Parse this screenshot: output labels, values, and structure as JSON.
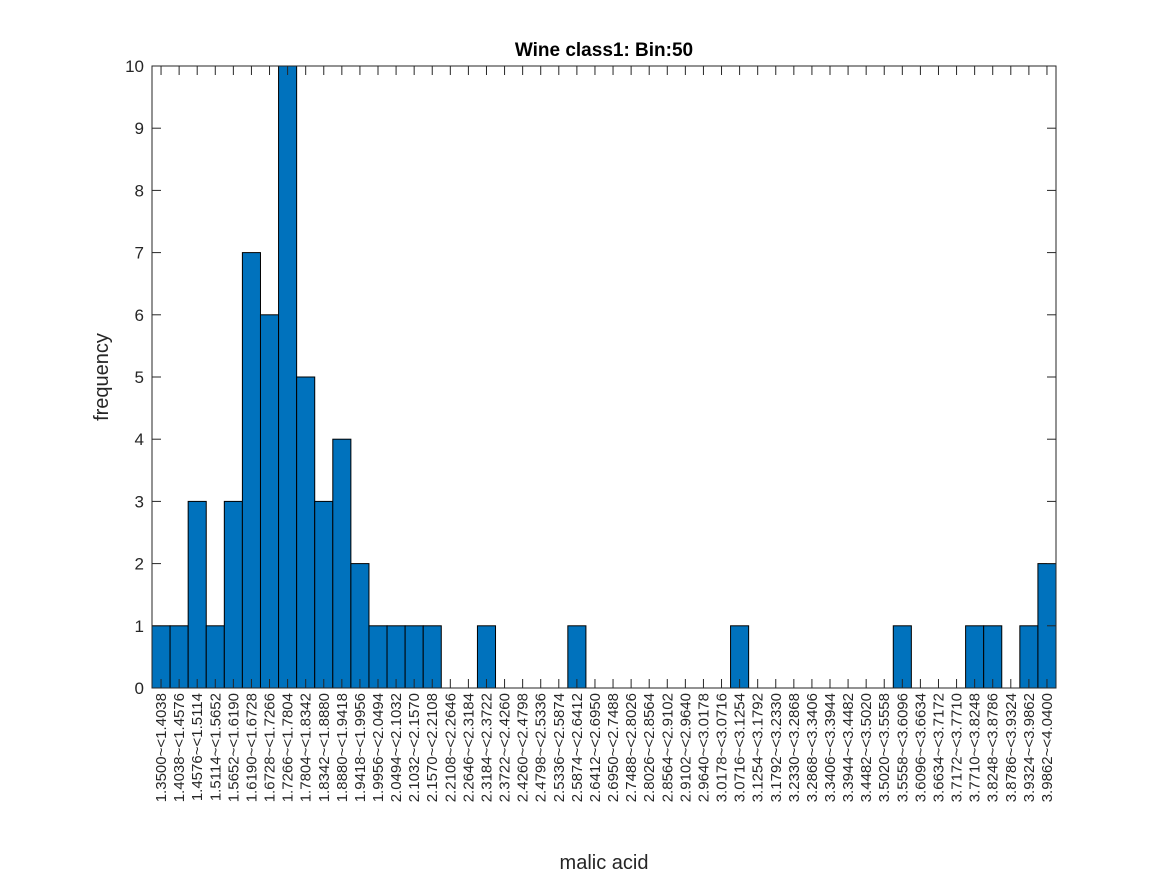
{
  "chart_data": {
    "type": "bar",
    "title": "Wine class1: Bin:50",
    "xlabel": "malic acid",
    "ylabel": "frequency",
    "ylim": [
      0,
      10
    ],
    "yticks": [
      "0",
      "1",
      "2",
      "3",
      "4",
      "5",
      "6",
      "7",
      "8",
      "9",
      "10"
    ],
    "grid": false,
    "bar_color": "#0072BD",
    "edge_color": "#000000",
    "categories": [
      "1.3500~<1.4038",
      "1.4038~<1.4576",
      "1.4576~<1.5114",
      "1.5114~<1.5652",
      "1.5652~<1.6190",
      "1.6190~<1.6728",
      "1.6728~<1.7266",
      "1.7266~<1.7804",
      "1.7804~<1.8342",
      "1.8342~<1.8880",
      "1.8880~<1.9418",
      "1.9418~<1.9956",
      "1.9956~<2.0494",
      "2.0494~<2.1032",
      "2.1032~<2.1570",
      "2.1570~<2.2108",
      "2.2108~<2.2646",
      "2.2646~<2.3184",
      "2.3184~<2.3722",
      "2.3722~<2.4260",
      "2.4260~<2.4798",
      "2.4798~<2.5336",
      "2.5336~<2.5874",
      "2.5874~<2.6412",
      "2.6412~<2.6950",
      "2.6950~<2.7488",
      "2.7488~<2.8026",
      "2.8026~<2.8564",
      "2.8564~<2.9102",
      "2.9102~<2.9640",
      "2.9640~<3.0178",
      "3.0178~<3.0716",
      "3.0716~<3.1254",
      "3.1254~<3.1792",
      "3.1792~<3.2330",
      "3.2330~<3.2868",
      "3.2868~<3.3406",
      "3.3406~<3.3944",
      "3.3944~<3.4482",
      "3.4482~<3.5020",
      "3.5020~<3.5558",
      "3.5558~<3.6096",
      "3.6096~<3.6634",
      "3.6634~<3.7172",
      "3.7172~<3.7710",
      "3.7710~<3.8248",
      "3.8248~<3.8786",
      "3.8786~<3.9324",
      "3.9324~<3.9862",
      "3.9862~<4.0400"
    ],
    "values": [
      1,
      1,
      3,
      1,
      3,
      7,
      6,
      10,
      5,
      3,
      4,
      2,
      1,
      1,
      1,
      1,
      0,
      0,
      1,
      0,
      0,
      0,
      0,
      1,
      0,
      0,
      0,
      0,
      0,
      0,
      0,
      0,
      1,
      0,
      0,
      0,
      0,
      0,
      0,
      0,
      0,
      1,
      0,
      0,
      0,
      1,
      1,
      0,
      1,
      2
    ]
  }
}
